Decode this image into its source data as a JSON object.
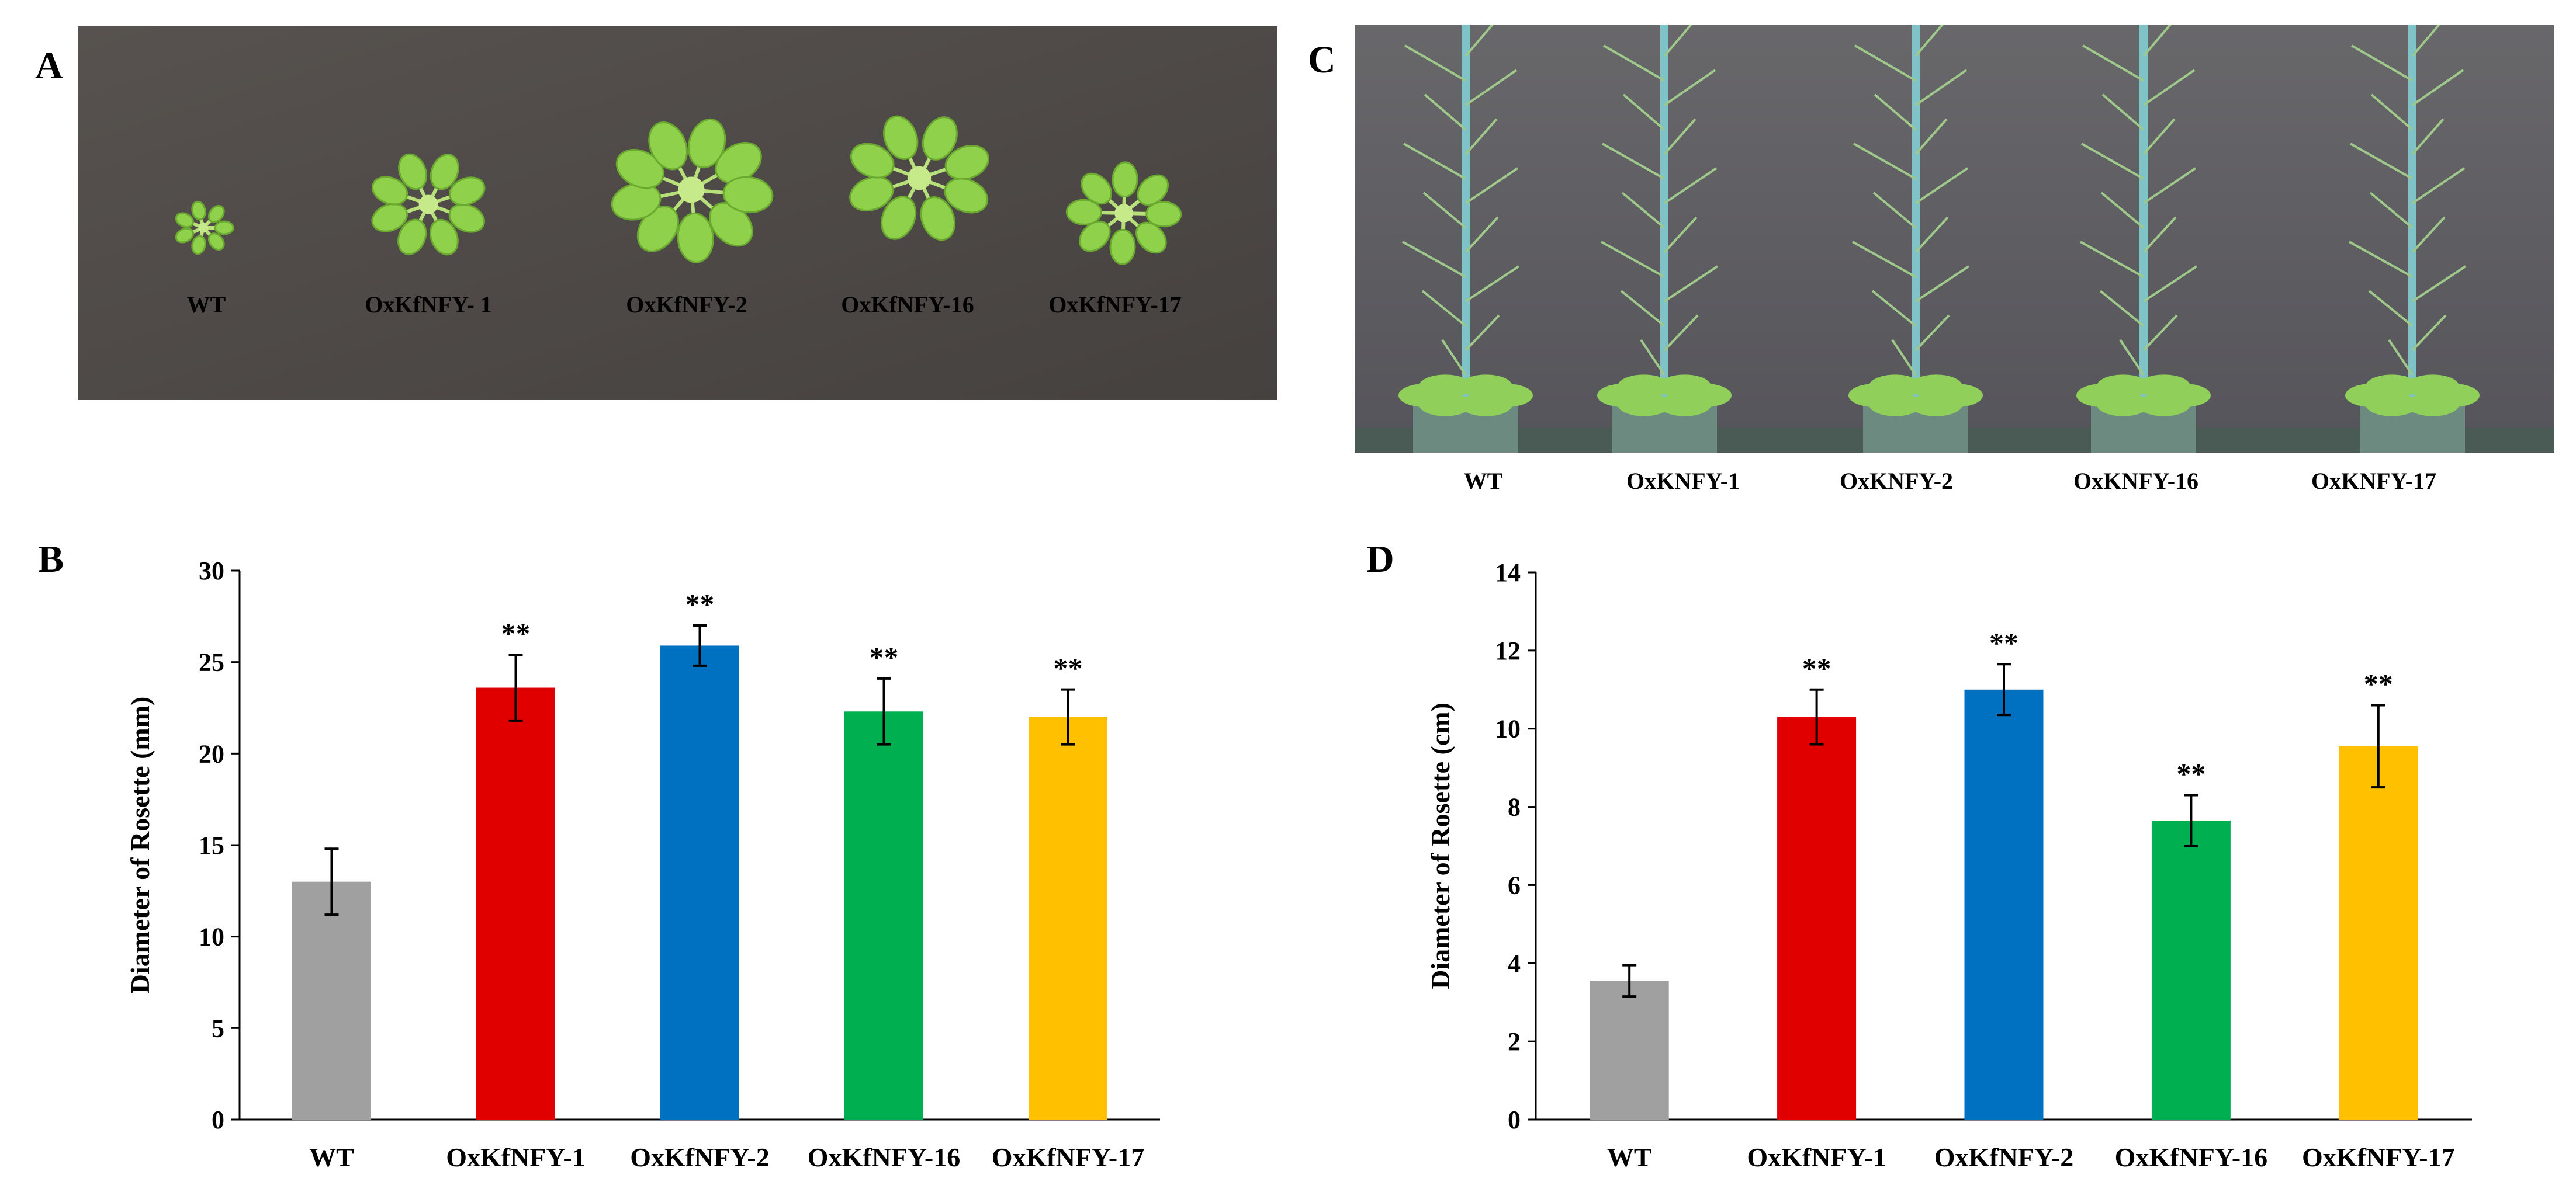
{
  "panels": {
    "A": {
      "letter": "A",
      "labels": [
        "WT",
        "OxKfNFY- 1",
        "OxKfNFY-2",
        "OxKfNFY-16",
        "OxKfNFY-17"
      ]
    },
    "C": {
      "letter": "C",
      "labels": [
        "WT",
        "OxKNFY-1",
        "OxKNFY-2",
        "OxKNFY-16",
        "OxKNFY-17"
      ]
    },
    "B": {
      "letter": "B"
    },
    "D": {
      "letter": "D"
    }
  },
  "colors": {
    "bars": [
      "#a0a0a0",
      "#e00000",
      "#0070c0",
      "#00b050",
      "#ffc000"
    ],
    "photo_bg_A": "#4e4a4a",
    "photo_bg_C": "#5c5b5d",
    "leaf": "#8fd14a"
  },
  "chart_data": [
    {
      "type": "bar",
      "panel": "B",
      "categories": [
        "WT",
        "OxKfNFY-1",
        "OxKfNFY-2",
        "OxKfNFY-16",
        "OxKfNFY-17"
      ],
      "values": [
        13.0,
        23.6,
        25.9,
        22.3,
        22.0
      ],
      "errors": [
        1.8,
        1.8,
        1.1,
        1.8,
        1.5
      ],
      "annotations": [
        "",
        "**",
        "**",
        "**",
        "**"
      ],
      "ylabel": "Diameter of Rosette (mm)",
      "xlabel": "",
      "ylim": [
        0,
        30
      ],
      "yticks": [
        0,
        5,
        10,
        15,
        20,
        25,
        30
      ],
      "grid": false
    },
    {
      "type": "bar",
      "panel": "D",
      "categories": [
        "WT",
        "OxKfNFY-1",
        "OxKfNFY-2",
        "OxKfNFY-16",
        "OxKfNFY-17"
      ],
      "values": [
        3.55,
        10.3,
        11.0,
        7.65,
        9.55
      ],
      "errors": [
        0.4,
        0.7,
        0.65,
        0.65,
        1.05
      ],
      "annotations": [
        "",
        "**",
        "**",
        "**",
        "**"
      ],
      "ylabel": "Diameter of Rosette (cm)",
      "xlabel": "",
      "ylim": [
        0,
        14
      ],
      "yticks": [
        0,
        2,
        4,
        6,
        8,
        10,
        12,
        14
      ],
      "grid": false
    }
  ]
}
